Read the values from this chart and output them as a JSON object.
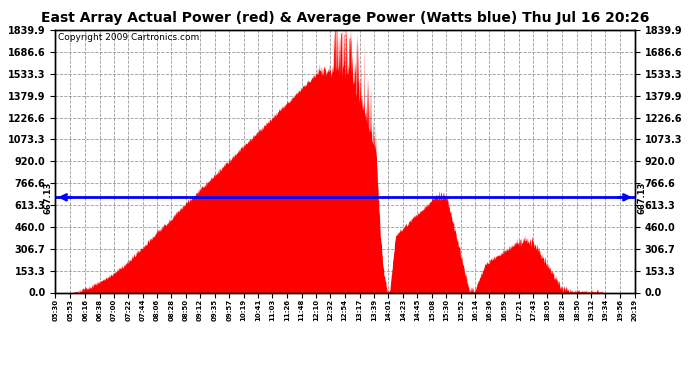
{
  "title": "East Array Actual Power (red) & Average Power (Watts blue) Thu Jul 16 20:26",
  "copyright": "Copyright 2009 Cartronics.com",
  "average_power": 667.13,
  "y_max": 1839.9,
  "y_ticks": [
    0.0,
    153.3,
    306.7,
    460.0,
    613.3,
    766.6,
    920.0,
    1073.3,
    1226.6,
    1379.9,
    1533.3,
    1686.6,
    1839.9
  ],
  "x_labels": [
    "05:30",
    "05:53",
    "06:16",
    "06:38",
    "07:00",
    "07:22",
    "07:44",
    "08:06",
    "08:28",
    "08:50",
    "09:12",
    "09:35",
    "09:57",
    "10:19",
    "10:41",
    "11:03",
    "11:26",
    "11:48",
    "12:10",
    "12:32",
    "12:54",
    "13:17",
    "13:39",
    "14:01",
    "14:23",
    "14:45",
    "15:08",
    "15:30",
    "15:52",
    "16:14",
    "16:36",
    "16:59",
    "17:21",
    "17:43",
    "18:05",
    "18:28",
    "18:50",
    "19:12",
    "19:34",
    "19:56",
    "20:19"
  ],
  "background_color": "#ffffff",
  "plot_bg_color": "#ffffff",
  "fill_color": "#ff0000",
  "line_color": "#0000ff",
  "grid_color": "#888888",
  "title_fontsize": 10,
  "copyright_fontsize": 6.5,
  "tick_fontsize": 7
}
